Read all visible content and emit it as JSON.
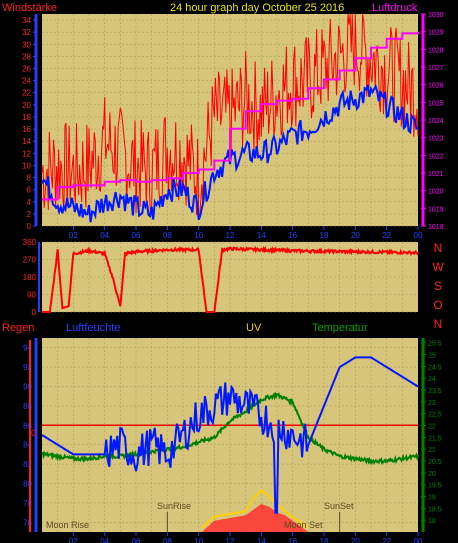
{
  "title": "24 hour graph day   October 25 2016",
  "colors": {
    "wind": "#ff2020",
    "gust": "#ff0000",
    "avg": "#0018ff",
    "pressure": "#ff00ff",
    "direction": "#ff0000",
    "humidity": "#0018ff",
    "temperature": "#008000",
    "uv": "#ffd000",
    "rain": "#ff0000",
    "panel": "#d6c57a",
    "axisblue": "#2040ff"
  },
  "x_ticks": [
    "02",
    "04",
    "06",
    "08",
    "10",
    "12",
    "14",
    "16",
    "18",
    "20",
    "22",
    "00"
  ],
  "chart_data": [
    {
      "type": "line",
      "name": "wind-pressure",
      "title": "24 hour graph day   October 25 2016",
      "ylabel_left": "Windstärke",
      "ylabel_right": "Luftdruck",
      "ylim_left": [
        0,
        35
      ],
      "yticks_left": [
        "0",
        "2",
        "4",
        "6",
        "8",
        "10",
        "12",
        "14",
        "16",
        "18",
        "20",
        "22",
        "24",
        "26",
        "28",
        "30",
        "32",
        "34"
      ],
      "ylim_right": [
        1018,
        1030
      ],
      "yticks_right": [
        "1018",
        "1019",
        "1020",
        "1021",
        "1022",
        "1023",
        "1024",
        "1025",
        "1026",
        "1027",
        "1028",
        "1029",
        "1030"
      ],
      "x": [
        0,
        1,
        2,
        3,
        4,
        5,
        6,
        7,
        8,
        9,
        10,
        11,
        12,
        13,
        14,
        15,
        16,
        17,
        18,
        19,
        20,
        21,
        22,
        23,
        24
      ],
      "series": [
        {
          "name": "gust",
          "axis": "left",
          "values": [
            9,
            10,
            9,
            10,
            14,
            12,
            10,
            9,
            13,
            12,
            8,
            18,
            18,
            21,
            19,
            22,
            24,
            24,
            26,
            28,
            30,
            28,
            26,
            24,
            22
          ]
        },
        {
          "name": "average",
          "axis": "left",
          "values": [
            8,
            4,
            3,
            2,
            4,
            5,
            3,
            2,
            6,
            6,
            3,
            9,
            11,
            12,
            12,
            13,
            15,
            16,
            18,
            20,
            21,
            22,
            20,
            18,
            16
          ]
        },
        {
          "name": "pressure",
          "axis": "right",
          "values": [
            1019.5,
            1020.2,
            1020.3,
            1020.3,
            1020.5,
            1020.6,
            1020.5,
            1020.6,
            1020.7,
            1021.0,
            1021.2,
            1021.7,
            1023.5,
            1024.5,
            1024.9,
            1025.1,
            1025.2,
            1025.8,
            1026.3,
            1026.8,
            1027.5,
            1028.1,
            1028.6,
            1028.9,
            1029.0
          ]
        }
      ]
    },
    {
      "type": "line",
      "name": "wind-direction",
      "ylabel_right": [
        "N",
        "W",
        "S",
        "O",
        "N"
      ],
      "ylim": [
        0,
        360
      ],
      "yticks": [
        "0",
        "90",
        "180",
        "270",
        "360"
      ],
      "x": [
        0,
        0.5,
        1,
        1.3,
        1.7,
        2,
        3,
        4,
        4.5,
        5,
        5.3,
        6,
        8,
        10,
        10.5,
        11,
        11.5,
        12,
        16,
        20,
        24
      ],
      "series": [
        {
          "name": "direction",
          "values": [
            0,
            0,
            320,
            20,
            30,
            300,
            315,
            300,
            180,
            30,
            300,
            310,
            320,
            320,
            0,
            0,
            320,
            325,
            315,
            310,
            305
          ]
        }
      ]
    },
    {
      "type": "line",
      "name": "humidity-temperature",
      "ylabel_left": "Regen",
      "labels": [
        "Luftfeuchte",
        "UV",
        "Temperatur"
      ],
      "ylim_left": [
        75,
        95
      ],
      "yticks_left": [
        "76",
        "78",
        "80",
        "82",
        "84",
        "86",
        "88",
        "90",
        "92",
        "94"
      ],
      "ylim_right": [
        17.5,
        25.7
      ],
      "yticks_right": [
        "18",
        "18.5",
        "19",
        "19.5",
        "20",
        "20.5",
        "21",
        "21.5",
        "22",
        "22.5",
        "23",
        "23.5",
        "24",
        "24.5",
        "25",
        "25.5"
      ],
      "rain_zero_label": "0",
      "x": [
        0,
        1,
        2,
        3,
        4,
        5,
        6,
        7,
        8,
        9,
        10,
        11,
        12,
        13,
        14,
        15,
        16,
        17,
        18,
        19,
        20,
        21,
        22,
        23,
        24
      ],
      "series": [
        {
          "name": "Luftfeuchte",
          "axis": "left",
          "values": [
            85,
            84,
            83,
            83,
            83,
            84,
            83,
            84,
            83,
            85,
            87,
            88,
            89,
            88,
            87,
            86,
            85,
            84,
            88,
            92,
            93,
            93,
            92,
            91,
            90
          ]
        },
        {
          "name": "Temperatur",
          "axis": "right",
          "values": [
            20.8,
            20.7,
            20.6,
            20.6,
            20.7,
            20.7,
            20.8,
            20.9,
            21.0,
            21.1,
            21.3,
            21.5,
            22.2,
            22.6,
            23.1,
            23.3,
            23.0,
            21.5,
            21.0,
            20.7,
            20.6,
            20.5,
            20.5,
            20.6,
            20.7
          ]
        },
        {
          "name": "UV",
          "axis": "left",
          "values": [
            75,
            75,
            75,
            75,
            75,
            75,
            75,
            75,
            75,
            75,
            75,
            76,
            76.5,
            77,
            77.5,
            77,
            76,
            75,
            75,
            75,
            75,
            75,
            75,
            75,
            75
          ]
        }
      ],
      "annotations": [
        "Moon Rise",
        "SunRise",
        "Moon Set",
        "SunSet"
      ]
    }
  ]
}
